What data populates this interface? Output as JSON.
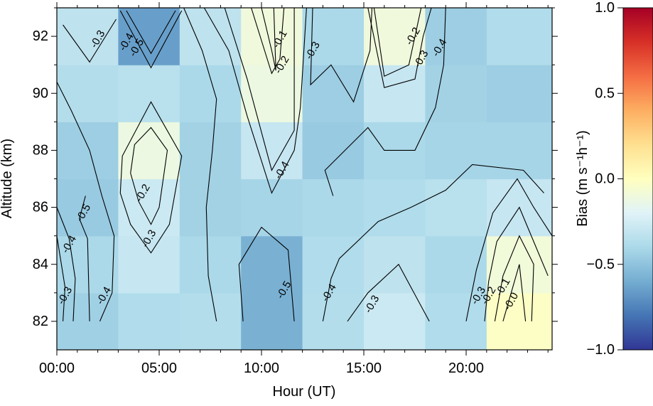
{
  "chart_data": {
    "type": "heatmap",
    "title": "",
    "xlabel": "Hour (UT)",
    "ylabel": "Altitude (km)",
    "xlim": [
      0,
      24.2
    ],
    "ylim": [
      81,
      93
    ],
    "x_ticks": [
      {
        "value": 0,
        "label": "00:00"
      },
      {
        "value": 5,
        "label": "05:00"
      },
      {
        "value": 10,
        "label": "10:00"
      },
      {
        "value": 15,
        "label": "15:00"
      },
      {
        "value": 20,
        "label": "20:00"
      }
    ],
    "y_ticks": [
      {
        "value": 82,
        "label": "82"
      },
      {
        "value": 84,
        "label": "84"
      },
      {
        "value": 86,
        "label": "86"
      },
      {
        "value": 88,
        "label": "88"
      },
      {
        "value": 90,
        "label": "90"
      },
      {
        "value": 92,
        "label": "92"
      }
    ],
    "cell_hours": [
      0,
      3,
      6,
      9,
      12,
      15,
      18,
      21,
      24.2
    ],
    "cell_altitudes": [
      81,
      83,
      85,
      87,
      89,
      91,
      93
    ],
    "values": [
      [
        -0.44,
        -0.38,
        -0.37,
        -0.58,
        -0.37,
        -0.28,
        -0.38,
        -0.02
      ],
      [
        -0.4,
        -0.3,
        -0.4,
        -0.58,
        -0.38,
        -0.33,
        -0.4,
        -0.09
      ],
      [
        -0.47,
        -0.28,
        -0.43,
        -0.42,
        -0.4,
        -0.38,
        -0.35,
        -0.3
      ],
      [
        -0.45,
        -0.12,
        -0.43,
        -0.3,
        -0.47,
        -0.4,
        -0.42,
        -0.42
      ],
      [
        -0.37,
        -0.35,
        -0.4,
        -0.12,
        -0.45,
        -0.3,
        -0.43,
        -0.45
      ],
      [
        -0.33,
        -0.65,
        -0.33,
        -0.1,
        -0.4,
        -0.1,
        -0.45,
        -0.38
      ]
    ],
    "contours": [
      {
        "label": "-0.3",
        "points": [
          [
            0.3,
            92.4
          ],
          [
            1.6,
            91.1
          ],
          [
            2.9,
            92.6
          ]
        ],
        "label_at": [
          2.0,
          91.9
        ]
      },
      {
        "label": "-0.4",
        "points": [
          [
            3.1,
            92.9
          ],
          [
            4.6,
            90.9
          ],
          [
            6.1,
            92.9
          ]
        ],
        "label_at": [
          3.4,
          91.8
        ]
      },
      {
        "label": "-0.5",
        "points": [
          [
            3.4,
            92.9
          ],
          [
            4.6,
            91.4
          ],
          [
            5.8,
            92.9
          ]
        ],
        "label_at": [
          3.9,
          91.6
        ]
      },
      {
        "label": "-0.4",
        "points": [
          [
            0,
            90.4
          ],
          [
            0.7,
            89.4
          ],
          [
            1.6,
            88.0
          ],
          [
            2.2,
            86.4
          ],
          [
            2.8,
            85.0
          ],
          [
            2.7,
            83.0
          ],
          [
            2.1,
            82.0
          ]
        ],
        "label_at": [
          2.3,
          82.9
        ]
      },
      {
        "label": "-0.4",
        "points": [
          [
            0,
            86.0
          ],
          [
            0.6,
            84.9
          ],
          [
            0.9,
            83.5
          ],
          [
            0.8,
            82.0
          ]
        ],
        "label_at": [
          0.6,
          84.7
        ]
      },
      {
        "label": "-0.3",
        "points": [
          [
            0,
            85.0
          ],
          [
            0.4,
            83.2
          ],
          [
            0.3,
            82.0
          ]
        ],
        "label_at": [
          0.4,
          82.9
        ]
      },
      {
        "label": "-0.5",
        "points": [
          [
            1.4,
            86.4
          ],
          [
            1.1,
            85.6
          ],
          [
            1.5,
            84.9
          ],
          [
            1.6,
            82.0
          ]
        ],
        "label_at": [
          1.3,
          85.8
        ]
      },
      {
        "label": "-0.3",
        "points": [
          [
            3.1,
            86.5
          ],
          [
            3.2,
            87.8
          ],
          [
            4.6,
            89.7
          ],
          [
            6.1,
            87.8
          ],
          [
            5.5,
            85.4
          ],
          [
            4.6,
            84.4
          ],
          [
            3.6,
            85.4
          ],
          [
            3.1,
            86.5
          ]
        ],
        "label_at": [
          4.5,
          84.9
        ]
      },
      {
        "label": "-0.2",
        "points": [
          [
            3.6,
            87.2
          ],
          [
            3.8,
            88.2
          ],
          [
            4.6,
            88.8
          ],
          [
            5.4,
            88.0
          ],
          [
            5.0,
            86.0
          ],
          [
            4.6,
            85.4
          ],
          [
            4.0,
            86.2
          ],
          [
            3.6,
            87.2
          ]
        ],
        "label_at": [
          4.2,
          86.5
        ]
      },
      {
        "label": "",
        "points": [
          [
            7.8,
            82.0
          ],
          [
            7.4,
            83.6
          ],
          [
            7.3,
            86.0
          ],
          [
            7.6,
            88.0
          ],
          [
            7.8,
            89.8
          ],
          [
            7.1,
            91.5
          ],
          [
            6.2,
            93.0
          ]
        ],
        "label_at": null
      },
      {
        "label": "-0.4",
        "points": [
          [
            7.2,
            93.0
          ],
          [
            8.4,
            91.5
          ],
          [
            9.3,
            89.2
          ],
          [
            10.5,
            86.5
          ],
          [
            11.6,
            88.0
          ],
          [
            11.9,
            89.5
          ],
          [
            12.2,
            93.0
          ]
        ],
        "label_at": [
          11.0,
          87.3
        ]
      },
      {
        "label": "",
        "points": [
          [
            8.2,
            93.0
          ],
          [
            9.3,
            90.5
          ],
          [
            10.5,
            87.3
          ],
          [
            11.6,
            88.7
          ],
          [
            11.6,
            93.0
          ]
        ],
        "label_at": null
      },
      {
        "label": "-0.2",
        "points": [
          [
            9.5,
            93.0
          ],
          [
            10.5,
            90.7
          ],
          [
            10.9,
            91.2
          ],
          [
            11.1,
            93.0
          ]
        ],
        "label_at": [
          11.0,
          91.0
        ]
      },
      {
        "label": "-0.1",
        "points": [
          [
            10.0,
            93.0
          ],
          [
            10.5,
            91.5
          ],
          [
            10.7,
            90.8
          ],
          [
            10.6,
            93.0
          ]
        ],
        "label_at": [
          10.9,
          91.9
        ]
      },
      {
        "label": "-0.3",
        "points": [
          [
            12.5,
            93.0
          ],
          [
            12.4,
            90.3
          ],
          [
            13.4,
            91.0
          ],
          [
            14.5,
            89.7
          ],
          [
            15.3,
            91.5
          ],
          [
            15.4,
            93.0
          ]
        ],
        "label_at": [
          12.5,
          91.5
        ]
      },
      {
        "label": "-0.4",
        "points": [
          [
            13.5,
            86.4
          ],
          [
            13.1,
            87.3
          ],
          [
            15.2,
            88.8
          ],
          [
            16.0,
            88.0
          ],
          [
            17.5,
            88.0
          ],
          [
            18.5,
            89.5
          ],
          [
            18.9,
            91.0
          ],
          [
            19.0,
            93.0
          ]
        ],
        "label_at": [
          18.7,
          91.6
        ]
      },
      {
        "label": "-0.3",
        "points": [
          [
            15.2,
            93.0
          ],
          [
            16.0,
            90.2
          ],
          [
            17.5,
            90.5
          ],
          [
            17.9,
            92.0
          ],
          [
            18.3,
            93.0
          ]
        ],
        "label_at": [
          17.8,
          91.2
        ]
      },
      {
        "label": "-0.2",
        "points": [
          [
            15.5,
            93.0
          ],
          [
            16.0,
            90.6
          ],
          [
            17.2,
            91.0
          ],
          [
            17.8,
            93.0
          ]
        ],
        "label_at": [
          17.4,
          92.0
        ]
      },
      {
        "label": "-0.5",
        "points": [
          [
            9.1,
            82.0
          ],
          [
            8.9,
            84.0
          ],
          [
            10.0,
            85.3
          ],
          [
            11.3,
            84.5
          ],
          [
            11.6,
            82.0
          ]
        ],
        "label_at": [
          11.1,
          83.1
        ]
      },
      {
        "label": "-0.4",
        "points": [
          [
            13.0,
            82.0
          ],
          [
            13.4,
            83.5
          ],
          [
            13.8,
            84.2
          ],
          [
            15.7,
            85.5
          ],
          [
            17.3,
            86.0
          ],
          [
            19.0,
            86.6
          ],
          [
            20.3,
            87.5
          ],
          [
            22.8,
            87.3
          ],
          [
            23.8,
            86.5
          ]
        ],
        "label_at": [
          13.3,
          83.0
        ]
      },
      {
        "label": "-0.3",
        "points": [
          [
            14.2,
            82.0
          ],
          [
            15.2,
            83.0
          ],
          [
            16.7,
            84.0
          ],
          [
            18.2,
            82.0
          ]
        ],
        "label_at": [
          15.4,
          82.6
        ]
      },
      {
        "label": "-0.3",
        "points": [
          [
            20.0,
            82.0
          ],
          [
            20.5,
            83.8
          ],
          [
            21.3,
            85.8
          ],
          [
            22.5,
            87.0
          ],
          [
            23.3,
            86.0
          ],
          [
            24.2,
            85.0
          ]
        ],
        "label_at": [
          20.6,
          82.9
        ]
      },
      {
        "label": "-0.2",
        "points": [
          [
            20.9,
            82.0
          ],
          [
            21.1,
            83.4
          ],
          [
            21.5,
            84.8
          ],
          [
            22.6,
            86.0
          ],
          [
            24.0,
            83.6
          ]
        ],
        "label_at": [
          21.1,
          82.9
        ]
      },
      {
        "label": "-0.1",
        "points": [
          [
            21.4,
            82.0
          ],
          [
            21.8,
            83.6
          ],
          [
            22.6,
            85.0
          ],
          [
            23.3,
            84.0
          ],
          [
            23.2,
            82.0
          ]
        ],
        "label_at": [
          21.8,
          83.2
        ]
      },
      {
        "label": "-0.0",
        "points": [
          [
            21.8,
            82.0
          ],
          [
            22.2,
            83.0
          ],
          [
            22.6,
            84.0
          ],
          [
            22.9,
            82.0
          ]
        ],
        "label_at": [
          22.2,
          82.7
        ]
      }
    ],
    "colorbar": {
      "label": "Bias (m s⁻¹h⁻¹)",
      "vmin": -1.0,
      "vmax": 1.0,
      "ticks": [
        {
          "value": 1.0,
          "label": "1.0"
        },
        {
          "value": 0.5,
          "label": "0.5"
        },
        {
          "value": 0.0,
          "label": "0.0"
        },
        {
          "value": -0.5,
          "label": "−0.5"
        },
        {
          "value": -1.0,
          "label": "−1.0"
        }
      ],
      "colormap": [
        "#313695",
        "#4575b4",
        "#74add1",
        "#abd9e9",
        "#e0f3f8",
        "#ffffbf",
        "#fee090",
        "#fdae61",
        "#f46d43",
        "#d73027",
        "#a50026"
      ]
    }
  }
}
